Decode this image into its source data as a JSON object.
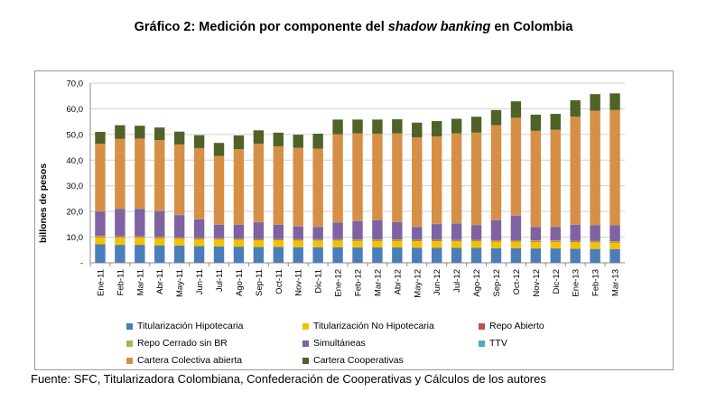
{
  "title_prefix": "Gráfico 2: Medición por componente del ",
  "title_italic": "shadow banking",
  "title_suffix": " en Colombia",
  "source": "Fuente: SFC, Titularizadora Colombiana, Confederación de Cooperativas y Cálculos de los autores",
  "chart_data": {
    "type": "bar",
    "stacked": true,
    "ylabel": "billones de pesos",
    "ylim": [
      0,
      70
    ],
    "yticks": [
      "-",
      "10,0",
      "20,0",
      "30,0",
      "40,0",
      "50,0",
      "60,0",
      "70,0"
    ],
    "grid": true,
    "categories": [
      "Ene-11",
      "Feb-11",
      "Mar-11",
      "Abr-11",
      "May-11",
      "Jun-11",
      "Jul-11",
      "Ago-11",
      "Sep-11",
      "Oct-11",
      "Nov-11",
      "Dic-11",
      "Ene-12",
      "Feb-12",
      "Mar-12",
      "Abr-12",
      "May-12",
      "Jun-12",
      "Jul-12",
      "Ago-12",
      "Sep-12",
      "Oct-12",
      "Nov-12",
      "Dic-12",
      "Ene-13",
      "Feb-13",
      "Mar-13"
    ],
    "series": [
      {
        "name": "Titularización Hipotecaria",
        "color": "#4a7eb8",
        "values": [
          7.2,
          7.0,
          7.0,
          6.8,
          6.7,
          6.5,
          6.4,
          6.3,
          6.2,
          6.2,
          6.1,
          6.1,
          6.1,
          6.0,
          6.0,
          6.0,
          5.9,
          5.9,
          5.8,
          5.8,
          5.7,
          5.7,
          5.6,
          5.6,
          5.5,
          5.4,
          5.3
        ]
      },
      {
        "name": "Titularización No Hipotecaria",
        "color": "#f2c200",
        "values": [
          2.8,
          2.8,
          2.8,
          2.8,
          2.7,
          2.7,
          2.7,
          2.7,
          2.6,
          2.6,
          2.6,
          2.6,
          2.6,
          2.6,
          2.6,
          2.6,
          2.6,
          2.6,
          2.6,
          2.6,
          2.6,
          2.6,
          2.6,
          2.6,
          2.6,
          2.6,
          2.6
        ]
      },
      {
        "name": "Repo Abierto",
        "color": "#c0504d",
        "values": [
          0.3,
          0.3,
          0.3,
          0.3,
          0.3,
          0.3,
          0.3,
          0.3,
          0.3,
          0.3,
          0.3,
          0.3,
          0.3,
          0.3,
          0.3,
          0.3,
          0.3,
          0.3,
          0.3,
          0.3,
          0.3,
          0.3,
          0.3,
          0.3,
          0.3,
          0.3,
          0.3
        ]
      },
      {
        "name": "Repo Cerrado sin BR",
        "color": "#9bbb59",
        "values": [
          0.2,
          0.2,
          0.2,
          0.2,
          0.2,
          0.2,
          0.2,
          0.2,
          0.2,
          0.2,
          0.2,
          0.2,
          0.2,
          0.2,
          0.2,
          0.2,
          0.2,
          0.2,
          0.2,
          0.2,
          0.2,
          0.2,
          0.2,
          0.2,
          0.2,
          0.2,
          0.2
        ]
      },
      {
        "name": "Simultáneas",
        "color": "#7e62a1",
        "values": [
          9.5,
          10.7,
          10.7,
          10.1,
          8.7,
          7.2,
          5.3,
          5.3,
          6.5,
          5.5,
          5.0,
          4.8,
          6.5,
          7.2,
          7.5,
          6.8,
          5.0,
          6.1,
          6.4,
          5.8,
          7.8,
          9.6,
          5.2,
          5.3,
          6.3,
          6.1,
          6.2
        ]
      },
      {
        "name": "TTV",
        "color": "#4bacc6",
        "values": [
          0.1,
          0.1,
          0.1,
          0.1,
          0.1,
          0.1,
          0.1,
          0.1,
          0.1,
          0.1,
          0.1,
          0.1,
          0.1,
          0.1,
          0.1,
          0.1,
          0.1,
          0.1,
          0.1,
          0.1,
          0.1,
          0.1,
          0.1,
          0.1,
          0.1,
          0.1,
          0.1
        ]
      },
      {
        "name": "Cartera Colectiva abierta",
        "color": "#d68f45",
        "values": [
          26.3,
          27.2,
          27.3,
          27.5,
          27.4,
          27.7,
          26.6,
          29.4,
          30.5,
          30.5,
          30.5,
          30.4,
          34.3,
          34.0,
          33.6,
          34.4,
          34.8,
          34.0,
          35.0,
          35.9,
          36.9,
          38.0,
          37.4,
          37.7,
          41.9,
          44.5,
          44.8
        ]
      },
      {
        "name": "Cartera Cooperativas",
        "color": "#4f6228",
        "values": [
          4.6,
          5.3,
          5.0,
          4.9,
          5.0,
          5.0,
          5.1,
          5.3,
          5.2,
          5.3,
          5.1,
          5.8,
          5.7,
          5.4,
          5.5,
          5.5,
          5.7,
          6.0,
          5.7,
          6.2,
          5.9,
          6.4,
          6.3,
          6.2,
          6.4,
          6.5,
          6.5
        ]
      }
    ]
  }
}
